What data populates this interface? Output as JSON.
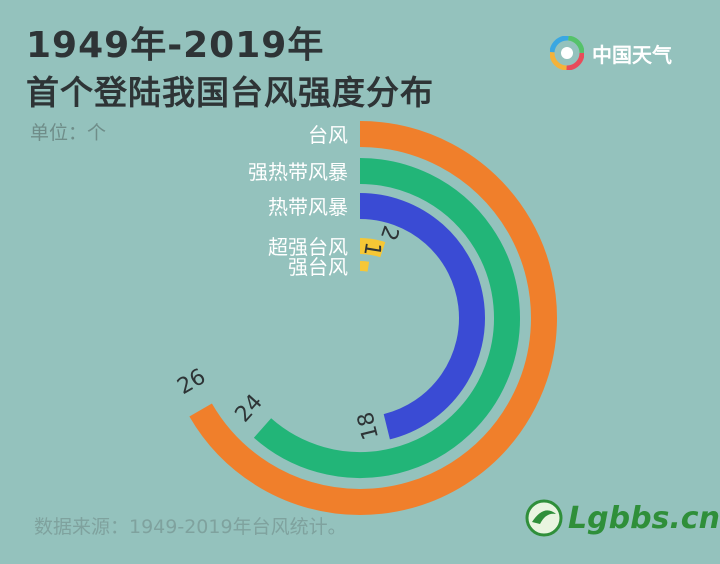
{
  "header": {
    "title_line1": "1949年-2019年",
    "title_line2": "首个登陆我国台风强度分布",
    "unit": "单位：个",
    "brand": "中国天气"
  },
  "footer": {
    "source": "数据来源：1949-2019年台风统计。",
    "watermark": "Lgbbs.cn"
  },
  "colors": {
    "background": "#94c2bd",
    "typhoon": "#f07f2b",
    "severe_tropical_storm": "#22b578",
    "tropical_storm": "#3a4bd4",
    "super_typhoon": "#f6c735",
    "strong_typhoon": "#f6c735"
  },
  "chart_data": {
    "type": "radial-bar",
    "title": "1949年-2019年 首个登陆我国台风强度分布",
    "unit": "单位：个",
    "categories": [
      "台风",
      "强热带风暴",
      "热带风暴",
      "超强台风",
      "强台风"
    ],
    "values": [
      26,
      24,
      18,
      2,
      1
    ],
    "max": 26
  }
}
